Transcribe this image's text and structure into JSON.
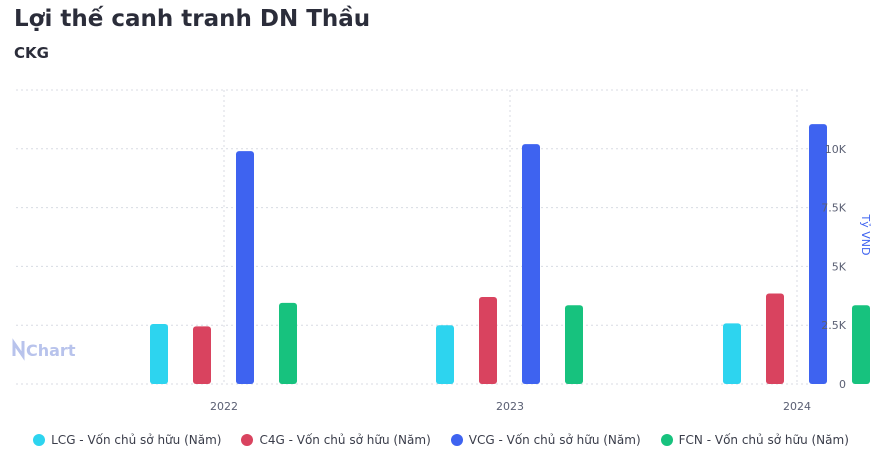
{
  "title": "Lợi thế canh tranh DN Thầu",
  "subtitle": "CKG",
  "watermark": "Chart",
  "chart_data": {
    "type": "bar",
    "categories": [
      "2022",
      "2023",
      "2024"
    ],
    "series": [
      {
        "name": "LCG - Vốn chủ sở hữu (Năm)",
        "color": "#2dd4ef",
        "values": [
          2550,
          2500,
          2580
        ]
      },
      {
        "name": "C4G - Vốn chủ sở hữu (Năm)",
        "color": "#d9435f",
        "values": [
          2450,
          3700,
          3850
        ]
      },
      {
        "name": "VCG - Vốn chủ sở hữu (Năm)",
        "color": "#3e63f0",
        "values": [
          9900,
          10200,
          11050
        ]
      },
      {
        "name": "FCN - Vốn chủ sở hữu (Năm)",
        "color": "#17c27e",
        "values": [
          3450,
          3350,
          3350
        ]
      }
    ],
    "yticks": [
      "0",
      "2.5K",
      "5K",
      "7.5K",
      "10K"
    ],
    "ylabel": "Tỷ VND",
    "ylim": [
      0,
      12500
    ],
    "grid": true,
    "legend_position": "bottom"
  }
}
